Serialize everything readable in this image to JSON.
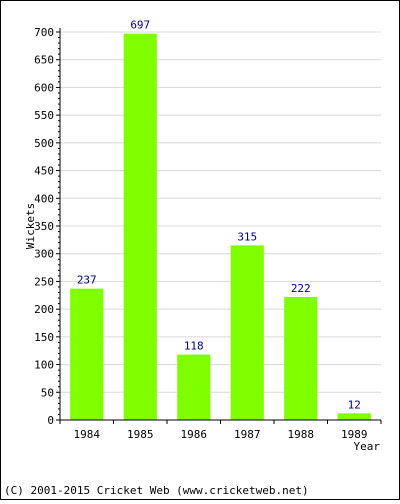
{
  "chart_data": {
    "type": "bar",
    "categories": [
      "1984",
      "1985",
      "1986",
      "1987",
      "1988",
      "1989"
    ],
    "values": [
      237,
      697,
      118,
      315,
      222,
      12
    ],
    "title": "",
    "xlabel": "Year",
    "ylabel": "Wickets",
    "ylim": [
      0,
      700
    ],
    "yticks": [
      0,
      50,
      100,
      150,
      200,
      250,
      300,
      350,
      400,
      450,
      500,
      550,
      600,
      650,
      700
    ],
    "grid": true,
    "bar_color": "#7fff00",
    "label_color": "#000080"
  },
  "footer": {
    "text": "(C) 2001-2015 Cricket Web (www.cricketweb.net)"
  }
}
